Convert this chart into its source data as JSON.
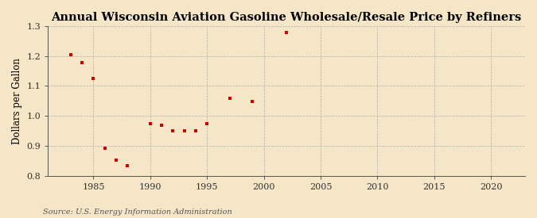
{
  "title": "Annual Wisconsin Aviation Gasoline Wholesale/Resale Price by Refiners",
  "ylabel": "Dollars per Gallon",
  "source": "Source: U.S. Energy Information Administration",
  "background_color": "#f5e6c8",
  "marker_color": "#cc0000",
  "years": [
    1983,
    1984,
    1985,
    1986,
    1987,
    1988,
    1990,
    1991,
    1992,
    1993,
    1994,
    1995,
    1997,
    1999,
    2002
  ],
  "values": [
    1.205,
    1.178,
    1.125,
    0.892,
    0.853,
    0.834,
    0.974,
    0.97,
    0.95,
    0.95,
    0.95,
    0.974,
    1.06,
    1.047,
    1.278
  ],
  "xlim": [
    1981,
    2023
  ],
  "ylim": [
    0.8,
    1.3
  ],
  "xticks": [
    1985,
    1990,
    1995,
    2000,
    2005,
    2010,
    2015,
    2020
  ],
  "yticks": [
    0.8,
    0.9,
    1.0,
    1.1,
    1.2,
    1.3
  ],
  "title_fontsize": 10.5,
  "label_fontsize": 8.5,
  "tick_fontsize": 8,
  "source_fontsize": 7
}
